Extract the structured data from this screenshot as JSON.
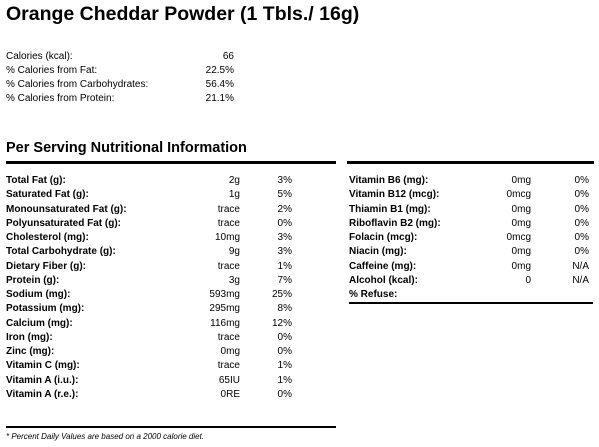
{
  "title": "Orange Cheddar Powder (1 Tbls./ 16g)",
  "summary": [
    {
      "label": "Calories (kcal):",
      "value": "66"
    },
    {
      "label": "% Calories from Fat:",
      "value": "22.5%"
    },
    {
      "label": "% Calories from Carbohydrates:",
      "value": "56.4%"
    },
    {
      "label": "% Calories from Protein:",
      "value": "21.1%"
    }
  ],
  "section_title": "Per Serving Nutritional Information",
  "left_rows": [
    {
      "label": "Total Fat (g):",
      "amount": "2g",
      "dv": "3%"
    },
    {
      "label": "Saturated Fat (g):",
      "amount": "1g",
      "dv": "5%"
    },
    {
      "label": "Monounsaturated Fat (g):",
      "amount": "trace",
      "dv": "2%"
    },
    {
      "label": "Polyunsaturated Fat (g):",
      "amount": "trace",
      "dv": "0%"
    },
    {
      "label": "Cholesterol (mg):",
      "amount": "10mg",
      "dv": "3%"
    },
    {
      "label": "Total Carbohydrate (g):",
      "amount": "9g",
      "dv": "3%"
    },
    {
      "label": "Dietary Fiber (g):",
      "amount": "trace",
      "dv": "1%"
    },
    {
      "label": "Protein (g):",
      "amount": "3g",
      "dv": "7%"
    },
    {
      "label": "Sodium (mg):",
      "amount": "593mg",
      "dv": "25%"
    },
    {
      "label": "Potassium (mg):",
      "amount": "295mg",
      "dv": "8%"
    },
    {
      "label": "Calcium (mg):",
      "amount": "116mg",
      "dv": "12%"
    },
    {
      "label": "Iron (mg):",
      "amount": "trace",
      "dv": "0%"
    },
    {
      "label": "Zinc (mg):",
      "amount": "0mg",
      "dv": "0%"
    },
    {
      "label": "Vitamin C (mg):",
      "amount": "trace",
      "dv": "1%"
    },
    {
      "label": "Vitamin A (i.u.):",
      "amount": "65IU",
      "dv": "1%"
    },
    {
      "label": "Vitamin A (r.e.):",
      "amount": "0RE",
      "dv": "0%"
    }
  ],
  "right_rows": [
    {
      "label": "Vitamin B6 (mg):",
      "amount": "0mg",
      "dv": "0%"
    },
    {
      "label": "Vitamin B12 (mcg):",
      "amount": "0mcg",
      "dv": "0%"
    },
    {
      "label": "Thiamin B1 (mg):",
      "amount": "0mg",
      "dv": "0%"
    },
    {
      "label": "Riboflavin B2 (mg):",
      "amount": "0mg",
      "dv": "0%"
    },
    {
      "label": "Folacin (mcg):",
      "amount": "0mcg",
      "dv": "0%"
    },
    {
      "label": "Niacin (mg):",
      "amount": "0mg",
      "dv": "0%"
    },
    {
      "label": "Caffeine (mg):",
      "amount": "0mg",
      "dv": "N/A"
    },
    {
      "label": "Alcohol (kcal):",
      "amount": "0",
      "dv": "N/A"
    },
    {
      "label": "% Refuse:",
      "amount": "",
      "dv": ""
    }
  ],
  "footnote": "* Percent Daily Values are based on a 2000 calorie diet."
}
